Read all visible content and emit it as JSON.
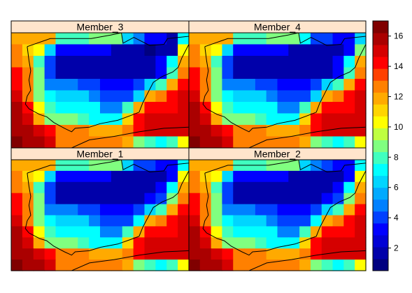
{
  "chart_data": {
    "type": "heatmap",
    "layout": "2x2 panels",
    "panels": [
      {
        "name": "Member_3",
        "grid": [
          [
            12,
            12,
            12,
            12,
            8,
            8,
            8,
            9,
            9,
            9,
            6,
            5,
            3,
            3,
            2,
            7
          ],
          [
            13,
            11,
            10,
            6,
            3,
            3,
            3,
            3,
            3,
            2,
            2,
            2,
            1,
            2,
            2,
            10
          ],
          [
            13,
            12,
            8,
            4,
            2,
            2,
            2,
            2,
            2,
            2,
            2,
            2,
            2,
            3,
            7,
            12
          ],
          [
            14,
            13,
            9,
            4,
            2,
            2,
            2,
            2,
            2,
            2,
            2,
            2,
            2,
            3,
            8,
            13
          ],
          [
            14,
            13,
            9,
            5,
            5,
            5,
            4,
            4,
            3,
            3,
            3,
            4,
            6,
            8,
            12,
            14
          ],
          [
            15,
            13,
            9,
            7,
            6,
            6,
            6,
            5,
            4,
            4,
            4,
            6,
            12,
            13,
            14,
            15
          ],
          [
            16,
            14,
            10,
            8,
            7,
            7,
            7,
            7,
            5,
            5,
            8,
            12,
            14,
            14,
            14,
            15
          ],
          [
            16,
            15,
            12,
            9,
            9,
            9,
            8,
            7,
            7,
            7,
            11,
            14,
            15,
            15,
            15,
            15
          ],
          [
            16,
            16,
            15,
            14,
            13,
            13,
            13,
            12,
            12,
            12,
            13,
            14,
            15,
            15,
            15,
            15
          ],
          [
            17,
            16,
            16,
            15,
            13,
            13,
            13,
            13,
            13,
            13,
            12,
            9,
            8,
            7,
            8,
            10
          ]
        ]
      },
      {
        "name": "Member_4",
        "grid": [
          [
            12,
            12,
            12,
            12,
            8,
            8,
            8,
            9,
            9,
            9,
            7,
            4,
            4,
            3,
            3,
            6
          ],
          [
            13,
            11,
            10,
            6,
            3,
            3,
            3,
            3,
            3,
            2,
            2,
            2,
            2,
            2,
            3,
            9
          ],
          [
            13,
            12,
            8,
            4,
            2,
            2,
            2,
            2,
            2,
            2,
            2,
            2,
            2,
            3,
            7,
            12
          ],
          [
            14,
            13,
            9,
            4,
            2,
            2,
            2,
            2,
            2,
            2,
            2,
            2,
            2,
            3,
            8,
            13
          ],
          [
            14,
            13,
            9,
            5,
            5,
            5,
            4,
            4,
            3,
            3,
            3,
            4,
            6,
            8,
            12,
            14
          ],
          [
            15,
            13,
            9,
            7,
            6,
            6,
            6,
            5,
            4,
            4,
            4,
            6,
            12,
            13,
            14,
            15
          ],
          [
            16,
            14,
            10,
            8,
            7,
            7,
            7,
            7,
            5,
            5,
            8,
            12,
            14,
            14,
            14,
            15
          ],
          [
            16,
            15,
            12,
            9,
            9,
            9,
            8,
            7,
            7,
            7,
            11,
            14,
            15,
            15,
            15,
            15
          ],
          [
            16,
            16,
            15,
            14,
            13,
            13,
            13,
            12,
            12,
            12,
            13,
            14,
            15,
            15,
            15,
            15
          ],
          [
            17,
            16,
            16,
            15,
            13,
            13,
            13,
            13,
            13,
            13,
            12,
            9,
            8,
            7,
            8,
            10
          ]
        ]
      },
      {
        "name": "Member_1",
        "grid": [
          [
            12,
            12,
            12,
            12,
            8,
            8,
            8,
            9,
            9,
            9,
            6,
            4,
            4,
            3,
            3,
            7
          ],
          [
            13,
            11,
            10,
            6,
            3,
            3,
            3,
            3,
            3,
            2,
            2,
            2,
            2,
            2,
            3,
            10
          ],
          [
            13,
            12,
            8,
            4,
            2,
            2,
            2,
            2,
            2,
            2,
            2,
            2,
            2,
            3,
            7,
            12
          ],
          [
            14,
            13,
            9,
            4,
            2,
            2,
            2,
            2,
            2,
            2,
            2,
            2,
            3,
            4,
            9,
            13
          ],
          [
            14,
            13,
            9,
            5,
            5,
            5,
            4,
            4,
            3,
            3,
            3,
            4,
            6,
            8,
            12,
            14
          ],
          [
            15,
            13,
            9,
            7,
            6,
            6,
            6,
            5,
            4,
            4,
            4,
            7,
            12,
            13,
            14,
            15
          ],
          [
            16,
            14,
            10,
            8,
            7,
            7,
            7,
            7,
            5,
            5,
            8,
            12,
            14,
            14,
            14,
            15
          ],
          [
            16,
            15,
            12,
            9,
            9,
            9,
            8,
            7,
            7,
            7,
            11,
            14,
            15,
            15,
            15,
            15
          ],
          [
            16,
            16,
            15,
            14,
            13,
            13,
            13,
            12,
            12,
            12,
            13,
            14,
            15,
            15,
            15,
            15
          ],
          [
            17,
            16,
            16,
            15,
            13,
            13,
            13,
            13,
            13,
            13,
            12,
            9,
            8,
            7,
            8,
            10
          ]
        ]
      },
      {
        "name": "Member_2",
        "grid": [
          [
            12,
            12,
            12,
            12,
            8,
            8,
            8,
            9,
            9,
            9,
            6,
            5,
            4,
            3,
            3,
            7
          ],
          [
            13,
            11,
            10,
            6,
            3,
            3,
            3,
            3,
            3,
            2,
            2,
            2,
            2,
            2,
            3,
            10
          ],
          [
            13,
            12,
            8,
            4,
            2,
            2,
            2,
            2,
            2,
            2,
            2,
            2,
            2,
            3,
            7,
            12
          ],
          [
            14,
            13,
            9,
            4,
            2,
            2,
            2,
            2,
            2,
            2,
            2,
            2,
            3,
            4,
            9,
            13
          ],
          [
            14,
            13,
            9,
            5,
            5,
            5,
            4,
            4,
            3,
            3,
            3,
            4,
            6,
            8,
            12,
            14
          ],
          [
            15,
            13,
            9,
            7,
            6,
            6,
            6,
            5,
            4,
            4,
            4,
            7,
            12,
            13,
            14,
            15
          ],
          [
            16,
            14,
            10,
            8,
            7,
            7,
            7,
            7,
            5,
            5,
            8,
            12,
            14,
            14,
            14,
            15
          ],
          [
            16,
            15,
            12,
            9,
            9,
            9,
            8,
            7,
            7,
            7,
            11,
            14,
            15,
            15,
            15,
            15
          ],
          [
            16,
            16,
            15,
            14,
            13,
            13,
            13,
            12,
            12,
            12,
            13,
            14,
            15,
            15,
            15,
            15
          ],
          [
            17,
            16,
            16,
            15,
            13,
            13,
            13,
            13,
            13,
            13,
            12,
            9,
            8,
            7,
            8,
            10
          ]
        ]
      }
    ],
    "colorbar": {
      "range": [
        0.5,
        17
      ],
      "ticks": [
        2,
        4,
        6,
        8,
        10,
        12,
        14,
        16
      ],
      "colors": [
        "#000080",
        "#0000AA",
        "#0000D5",
        "#0000FF",
        "#0040FF",
        "#0080FF",
        "#00AAFF",
        "#00D5FF",
        "#00FFFF",
        "#40FFBF",
        "#80FF80",
        "#BFFF40",
        "#FFFF00",
        "#FFD500",
        "#FFAA00",
        "#FF8000",
        "#FF4000",
        "#FF0000",
        "#D50000",
        "#AA0000",
        "#800000"
      ]
    },
    "strip_color": "#FFE5CC",
    "title": "",
    "xlabel": "",
    "ylabel": ""
  }
}
